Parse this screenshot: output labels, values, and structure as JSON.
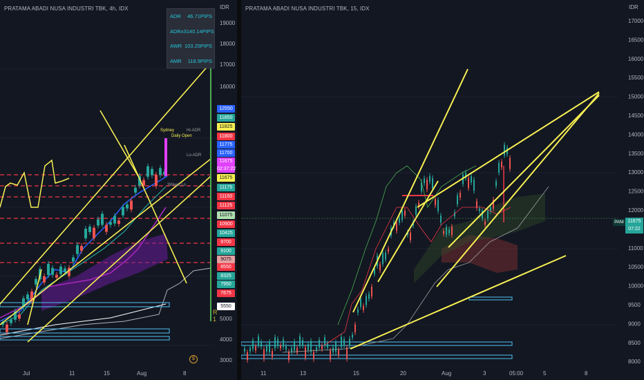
{
  "left_chart": {
    "title": "PRATAMA ABADI NUSA INDUSTRI TBK, 4h, IDX",
    "currency": "IDR",
    "y_ticks": [
      "19000",
      "18000",
      "17000",
      "16000",
      "5000",
      "4000",
      "3000"
    ],
    "x_ticks": [
      "Jul",
      "11",
      "15",
      "Aug",
      "8"
    ],
    "adr_table": [
      {
        "label": "ADR",
        "value": "46.71PIPS"
      },
      {
        "label": "ADRx3",
        "value": "140.14PIPS"
      },
      {
        "label": "AWR",
        "value": "103.25PIPS"
      },
      {
        "label": "AMR",
        "value": "118.9PIPS"
      }
    ],
    "price_tags": [
      {
        "text": "12550",
        "color": "#2962ff"
      },
      {
        "text": "11850",
        "color": "#26a69a"
      },
      {
        "text": "11825",
        "color": "#f7f052",
        "dark": true
      },
      {
        "text": "11800",
        "color": "#f23645"
      },
      {
        "text": "11775",
        "color": "#2962ff"
      },
      {
        "text": "11700",
        "color": "#2962ff"
      },
      {
        "text": "11675",
        "color": "#e040fb"
      },
      {
        "text": "02:37:22",
        "color": "#e040fb"
      },
      {
        "text": "11675",
        "color": "#f7f052",
        "dark": true
      },
      {
        "text": "11175",
        "color": "#26a69a"
      },
      {
        "text": "11150",
        "color": "#f23645"
      },
      {
        "text": "11125",
        "color": "#f23645"
      },
      {
        "text": "11075",
        "color": "#b2dfb0",
        "dark": true
      },
      {
        "text": "10900",
        "color": "#f23645"
      },
      {
        "text": "10425",
        "color": "#26a69a"
      },
      {
        "text": "9700",
        "color": "#f23645"
      },
      {
        "text": "9100",
        "color": "#26a69a"
      },
      {
        "text": "9075",
        "color": "#e5a0a0",
        "dark": true
      },
      {
        "text": "8550",
        "color": "#f23645"
      },
      {
        "text": "8325",
        "color": "#26a69a"
      },
      {
        "text": "7950",
        "color": "#26a69a"
      },
      {
        "text": "7675",
        "color": "#f23645"
      },
      {
        "text": "5550",
        "color": "#ffffff",
        "dark": true
      }
    ],
    "chart_labels": [
      "Sydney",
      "Daily Open",
      "Hi-ADR",
      "Lo-ADR",
      "3Week Lo"
    ],
    "r_label": "R",
    "one_label": "1"
  },
  "right_chart": {
    "title": "PRATAMA ABADI NUSA INDUSTRI TBK, 15, IDX",
    "currency": "IDR",
    "y_ticks": [
      "17000",
      "16500",
      "16000",
      "15500",
      "15000",
      "14500",
      "14000",
      "13500",
      "13000",
      "12500",
      "12000",
      "11500",
      "11000",
      "10500",
      "10000",
      "9500",
      "9000",
      "8500",
      "8000"
    ],
    "x_ticks": [
      "11",
      "13",
      "15",
      "20",
      "Aug",
      "3",
      "05:00",
      "5",
      "8"
    ],
    "symbol": "PANI",
    "last_price": "11675",
    "countdown": "07:22"
  },
  "colors": {
    "bg": "#131722",
    "up": "#26a69a",
    "down": "#ef5350",
    "trendline": "#f7f052",
    "grid": "#1e222d"
  }
}
